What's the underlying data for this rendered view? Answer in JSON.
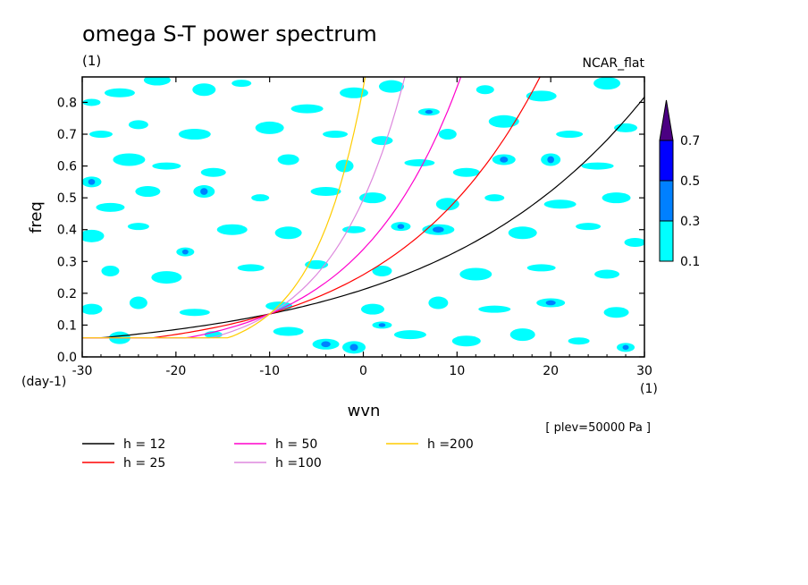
{
  "chart_data": {
    "type": "heatmap",
    "title": "omega S-T power spectrum",
    "subtitle_left": "(1)",
    "subtitle_right": "NCAR_flat",
    "xlabel": "wvn",
    "ylabel": "freq",
    "x_unit_label": "(1)",
    "y_unit_label": "(day-1)",
    "xlim": [
      -30,
      30
    ],
    "ylim": [
      0,
      0.88
    ],
    "xticks": [
      "-30",
      "-20",
      "-10",
      "0",
      "10",
      "20",
      "30"
    ],
    "yticks": [
      "0.0",
      "0.1",
      "0.2",
      "0.3",
      "0.4",
      "0.5",
      "0.6",
      "0.7",
      "0.8"
    ],
    "annotation": "[ plev=50000 Pa ]",
    "colorbar": {
      "levels": [
        "0.1",
        "0.3",
        "0.5",
        "0.7"
      ],
      "colors": [
        "#00ffff",
        "#0080ff",
        "#0000ff",
        "#4b0082"
      ]
    },
    "contour_fill_patches": [
      {
        "x": -29,
        "y": 0.8,
        "level": 1
      },
      {
        "x": -26,
        "y": 0.83,
        "level": 1
      },
      {
        "x": -22,
        "y": 0.87,
        "level": 1
      },
      {
        "x": -17,
        "y": 0.84,
        "level": 1
      },
      {
        "x": -13,
        "y": 0.86,
        "level": 1
      },
      {
        "x": -6,
        "y": 0.78,
        "level": 1
      },
      {
        "x": -1,
        "y": 0.83,
        "level": 1
      },
      {
        "x": 3,
        "y": 0.85,
        "level": 1
      },
      {
        "x": 7,
        "y": 0.77,
        "level": 2
      },
      {
        "x": 13,
        "y": 0.84,
        "level": 1
      },
      {
        "x": 19,
        "y": 0.82,
        "level": 1
      },
      {
        "x": 26,
        "y": 0.86,
        "level": 1
      },
      {
        "x": -28,
        "y": 0.7,
        "level": 1
      },
      {
        "x": -24,
        "y": 0.73,
        "level": 1
      },
      {
        "x": -18,
        "y": 0.7,
        "level": 1
      },
      {
        "x": -10,
        "y": 0.72,
        "level": 1
      },
      {
        "x": -3,
        "y": 0.7,
        "level": 1
      },
      {
        "x": 2,
        "y": 0.68,
        "level": 1
      },
      {
        "x": 9,
        "y": 0.7,
        "level": 1
      },
      {
        "x": 15,
        "y": 0.74,
        "level": 1
      },
      {
        "x": 22,
        "y": 0.7,
        "level": 1
      },
      {
        "x": 28,
        "y": 0.72,
        "level": 1
      },
      {
        "x": -29,
        "y": 0.55,
        "level": 2
      },
      {
        "x": -25,
        "y": 0.62,
        "level": 1
      },
      {
        "x": -21,
        "y": 0.6,
        "level": 1
      },
      {
        "x": -16,
        "y": 0.58,
        "level": 1
      },
      {
        "x": -8,
        "y": 0.62,
        "level": 1
      },
      {
        "x": -2,
        "y": 0.6,
        "level": 1
      },
      {
        "x": 6,
        "y": 0.61,
        "level": 1
      },
      {
        "x": 11,
        "y": 0.58,
        "level": 1
      },
      {
        "x": 15,
        "y": 0.62,
        "level": 2
      },
      {
        "x": 20,
        "y": 0.62,
        "level": 2
      },
      {
        "x": 25,
        "y": 0.6,
        "level": 1
      },
      {
        "x": -27,
        "y": 0.47,
        "level": 1
      },
      {
        "x": -23,
        "y": 0.52,
        "level": 1
      },
      {
        "x": -17,
        "y": 0.52,
        "level": 2
      },
      {
        "x": -11,
        "y": 0.5,
        "level": 1
      },
      {
        "x": -4,
        "y": 0.52,
        "level": 1
      },
      {
        "x": 1,
        "y": 0.5,
        "level": 1
      },
      {
        "x": 9,
        "y": 0.48,
        "level": 1
      },
      {
        "x": 14,
        "y": 0.5,
        "level": 1
      },
      {
        "x": 21,
        "y": 0.48,
        "level": 1
      },
      {
        "x": 27,
        "y": 0.5,
        "level": 1
      },
      {
        "x": -29,
        "y": 0.38,
        "level": 1
      },
      {
        "x": -24,
        "y": 0.41,
        "level": 1
      },
      {
        "x": -19,
        "y": 0.33,
        "level": 2
      },
      {
        "x": -14,
        "y": 0.4,
        "level": 1
      },
      {
        "x": -8,
        "y": 0.39,
        "level": 1
      },
      {
        "x": -1,
        "y": 0.4,
        "level": 1
      },
      {
        "x": 4,
        "y": 0.41,
        "level": 2
      },
      {
        "x": 8,
        "y": 0.4,
        "level": 2
      },
      {
        "x": 17,
        "y": 0.39,
        "level": 1
      },
      {
        "x": 24,
        "y": 0.41,
        "level": 1
      },
      {
        "x": 29,
        "y": 0.36,
        "level": 1
      },
      {
        "x": -27,
        "y": 0.27,
        "level": 1
      },
      {
        "x": -21,
        "y": 0.25,
        "level": 1
      },
      {
        "x": -12,
        "y": 0.28,
        "level": 1
      },
      {
        "x": -5,
        "y": 0.29,
        "level": 1
      },
      {
        "x": 2,
        "y": 0.27,
        "level": 1
      },
      {
        "x": 12,
        "y": 0.26,
        "level": 1
      },
      {
        "x": 19,
        "y": 0.28,
        "level": 1
      },
      {
        "x": 26,
        "y": 0.26,
        "level": 1
      },
      {
        "x": -29,
        "y": 0.15,
        "level": 1
      },
      {
        "x": -24,
        "y": 0.17,
        "level": 1
      },
      {
        "x": -18,
        "y": 0.14,
        "level": 1
      },
      {
        "x": -9,
        "y": 0.16,
        "level": 1
      },
      {
        "x": 1,
        "y": 0.15,
        "level": 1
      },
      {
        "x": 8,
        "y": 0.17,
        "level": 1
      },
      {
        "x": 14,
        "y": 0.15,
        "level": 1
      },
      {
        "x": 20,
        "y": 0.17,
        "level": 2
      },
      {
        "x": 27,
        "y": 0.14,
        "level": 1
      },
      {
        "x": -26,
        "y": 0.06,
        "level": 1
      },
      {
        "x": -16,
        "y": 0.07,
        "level": 1
      },
      {
        "x": -8,
        "y": 0.08,
        "level": 1
      },
      {
        "x": -4,
        "y": 0.04,
        "level": 2
      },
      {
        "x": -1,
        "y": 0.03,
        "level": 2
      },
      {
        "x": 2,
        "y": 0.1,
        "level": 2
      },
      {
        "x": 5,
        "y": 0.07,
        "level": 1
      },
      {
        "x": 11,
        "y": 0.05,
        "level": 1
      },
      {
        "x": 17,
        "y": 0.07,
        "level": 1
      },
      {
        "x": 23,
        "y": 0.05,
        "level": 1
      },
      {
        "x": 28,
        "y": 0.03,
        "level": 2
      }
    ],
    "series": [
      {
        "name": "h = 12",
        "color": "#000000",
        "h": 12
      },
      {
        "name": "h = 25",
        "color": "#ff0000",
        "h": 25
      },
      {
        "name": "h = 50",
        "color": "#ff00cc",
        "h": 50
      },
      {
        "name": "h =100",
        "color": "#dd88dd",
        "h": 100
      },
      {
        "name": "h =200",
        "color": "#ffcc00",
        "h": 200
      }
    ]
  }
}
